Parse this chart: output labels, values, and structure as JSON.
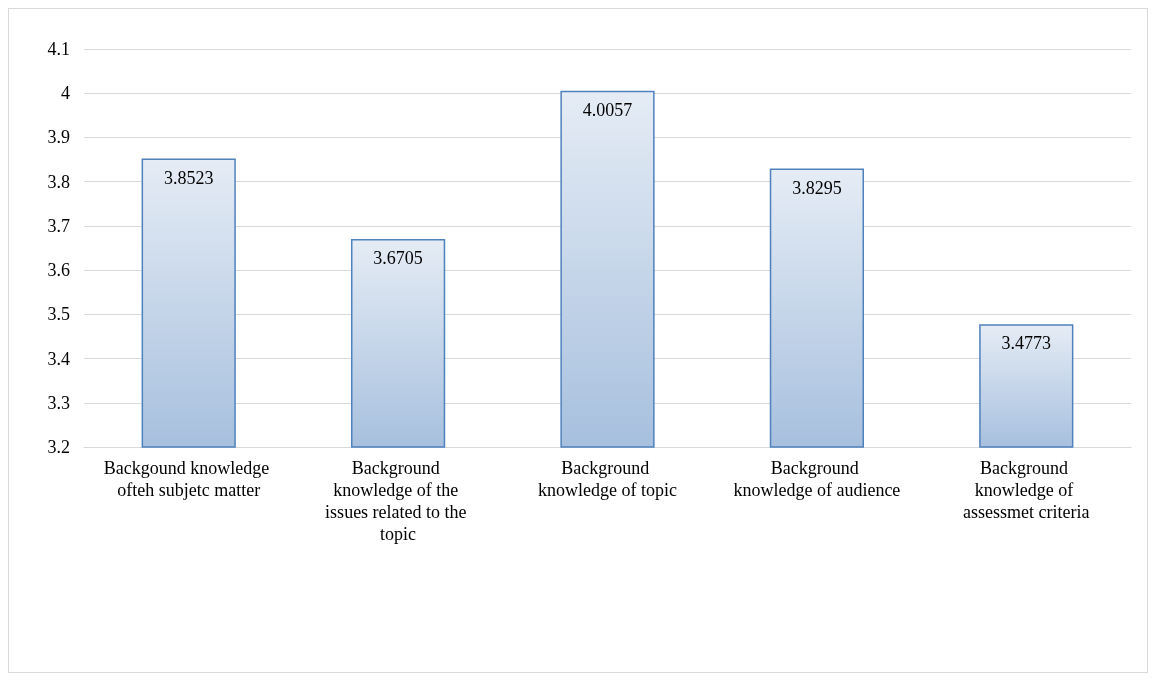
{
  "chart_data": {
    "type": "bar",
    "categories": [
      "Backgound knowledge ofteh subjetc matter",
      "Background knowledge of the issues related to the topic",
      "Background knowledge of topic",
      "Background knowledge of audience",
      "Background knowledge of assessmet criteria"
    ],
    "values": [
      3.8523,
      3.6705,
      4.0057,
      3.8295,
      3.4773
    ],
    "color": "#4f81bd",
    "ylim": [
      3.2,
      4.1
    ],
    "yticks": [
      3.2,
      3.3,
      3.4,
      3.5,
      3.6,
      3.7,
      3.8,
      3.9,
      4,
      4.1
    ],
    "grid": "y",
    "data_labels": true
  }
}
